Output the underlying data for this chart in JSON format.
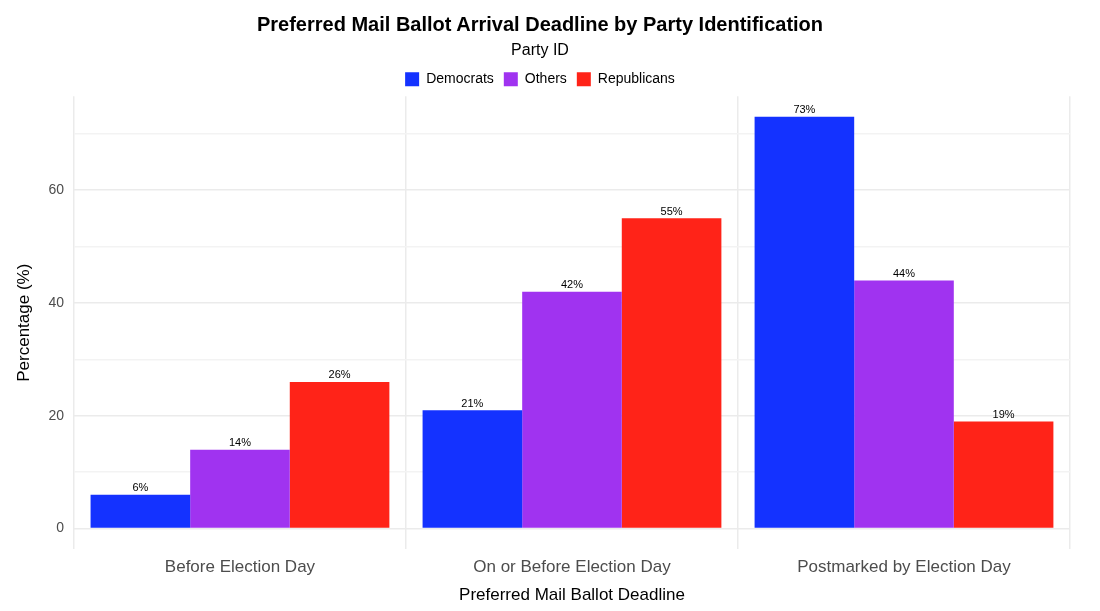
{
  "chart_data": {
    "type": "bar",
    "title": "Preferred Mail Ballot Arrival Deadline by Party Identification",
    "xlabel": "Preferred Mail Ballot Deadline",
    "ylabel": "Percentage (%)",
    "legend_title": "Party ID",
    "legend": "top",
    "grid": true,
    "categories": [
      "Before Election Day",
      "On or Before Election Day",
      "Postmarked by Election Day"
    ],
    "series": [
      {
        "name": "Democrats",
        "color": "#1432ff",
        "values": [
          6,
          21,
          73
        ],
        "value_labels": [
          "6%",
          "21%",
          "73%"
        ]
      },
      {
        "name": "Others",
        "color": "#a033f0",
        "values": [
          14,
          42,
          44
        ],
        "value_labels": [
          "14%",
          "42%",
          "44%"
        ]
      },
      {
        "name": "Republicans",
        "color": "#ff2318",
        "values": [
          26,
          55,
          19
        ],
        "value_labels": [
          "26%",
          "55%",
          "19%"
        ]
      }
    ],
    "ylim": [
      -3.65,
      76.65
    ],
    "yticks": [
      0,
      {
        "value": 10,
        "label": null
      },
      20,
      {
        "value": 30,
        "label": null
      },
      40,
      {
        "value": 50,
        "label": null
      },
      60,
      {
        "value": 70,
        "label": null
      }
    ]
  }
}
